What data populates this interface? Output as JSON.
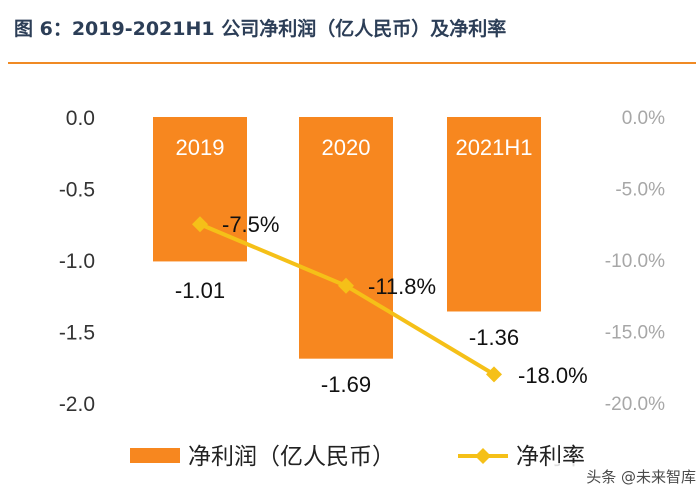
{
  "title": "图 6：2019-2021H1 公司净利润（亿人民币）及净利率",
  "watermark": "头条 @未来智库",
  "chart_data": {
    "type": "bar",
    "categories": [
      "2019",
      "2020",
      "2021H1"
    ],
    "series": [
      {
        "name": "净利润（亿人民币）",
        "kind": "bar",
        "axis": "left",
        "color": "#f7871f",
        "values": [
          -1.01,
          -1.69,
          -1.36
        ],
        "labels": [
          "-1.01",
          "-1.69",
          "-1.36"
        ]
      },
      {
        "name": "净利率",
        "kind": "line",
        "axis": "right",
        "color": "#f5c018",
        "values": [
          -7.5,
          -11.8,
          -18.0
        ],
        "labels": [
          "-7.5%",
          "-11.8%",
          "-18.0%"
        ]
      }
    ],
    "y_left": {
      "min": -2.0,
      "max": 0.0,
      "ticks": [
        "0.0",
        "-0.5",
        "-1.0",
        "-1.5",
        "-2.0"
      ]
    },
    "y_right": {
      "min": -20.0,
      "max": 0.0,
      "ticks": [
        "0.0%",
        "-5.0%",
        "-10.0%",
        "-15.0%",
        "-20.0%"
      ]
    },
    "grid": false,
    "legend_position": "bottom"
  }
}
